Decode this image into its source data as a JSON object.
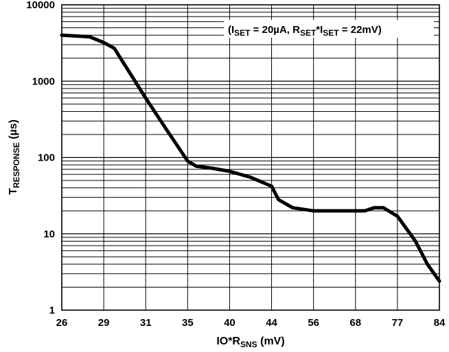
{
  "chart_data": {
    "type": "line",
    "y_scale": "log",
    "ylim": [
      1,
      10000
    ],
    "grid": true,
    "x_tick_labels": [
      "26",
      "29",
      "31",
      "35",
      "40",
      "44",
      "56",
      "68",
      "77",
      "84"
    ],
    "y_tick_labels": [
      "1",
      "10",
      "100",
      "1000",
      "10000"
    ],
    "xlabel": {
      "main": "IO*R",
      "sub": "SNS",
      "unit": " (mV)"
    },
    "ylabel": {
      "main": "T",
      "sub": "RESPONSE",
      "unit": " (µs)"
    },
    "annotation": {
      "p1": "(I",
      "s1": "SET",
      "p2": " = 20µA, R",
      "s2": "SET",
      "p3": "*I",
      "s3": "SET",
      "p4": " = 22mV)"
    },
    "series": [
      {
        "x": [
          26,
          28,
          29,
          29.5,
          31,
          33,
          35,
          36,
          38,
          40,
          42,
          44,
          46,
          50,
          56,
          64,
          68,
          70,
          72,
          74,
          77,
          80,
          82,
          84
        ],
        "values": [
          4000,
          3800,
          3200,
          2700,
          600,
          230,
          90,
          77,
          72,
          66,
          55,
          42,
          28,
          22,
          20,
          20,
          20,
          20,
          22,
          22,
          17,
          8,
          4,
          2.4
        ]
      }
    ]
  }
}
